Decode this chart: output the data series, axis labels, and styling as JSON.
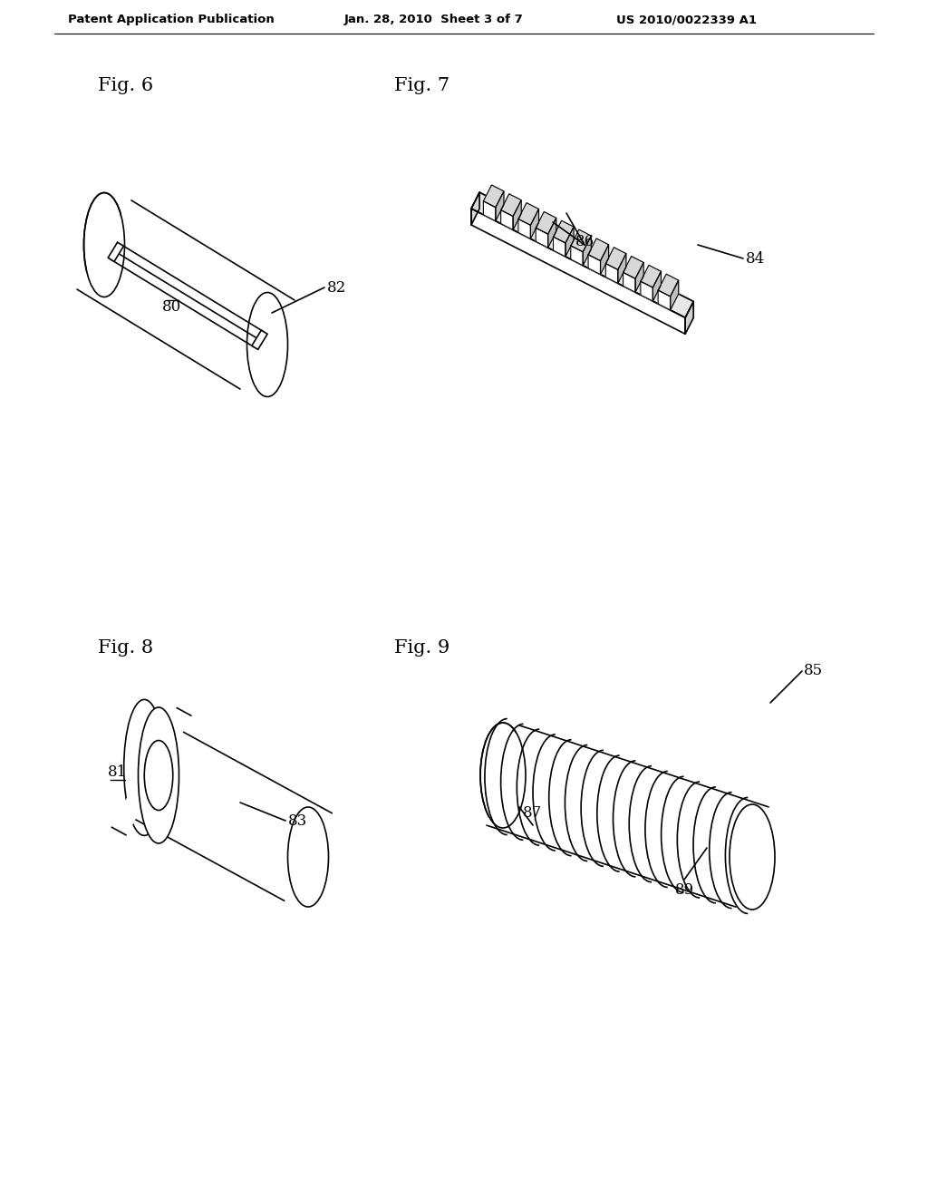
{
  "bg_color": "#ffffff",
  "header_left": "Patent Application Publication",
  "header_center": "Jan. 28, 2010  Sheet 3 of 7",
  "header_right": "US 2010/0022339 A1",
  "fig6_label": "Fig. 6",
  "fig7_label": "Fig. 7",
  "fig8_label": "Fig. 8",
  "fig9_label": "Fig. 9",
  "line_color": "#000000",
  "label_color": "#000000",
  "font_size_header": 9.5,
  "font_size_fig": 15,
  "font_size_ref": 12
}
